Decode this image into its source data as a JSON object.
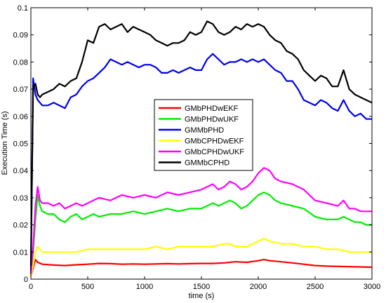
{
  "chart_data": {
    "type": "line",
    "title": "",
    "xlabel": "time (s)",
    "ylabel": "Execution Time (s)",
    "xlim": [
      0,
      3000
    ],
    "ylim": [
      0,
      0.1
    ],
    "xticks": [
      "0",
      "500",
      "1000",
      "1500",
      "2000",
      "2500",
      "3000"
    ],
    "yticks": [
      "0",
      "0.01",
      "0.02",
      "0.03",
      "0.04",
      "0.05",
      "0.06",
      "0.07",
      "0.08",
      "0.09",
      "0.1"
    ],
    "xtick_values": [
      0,
      500,
      1000,
      1500,
      2000,
      2500,
      3000
    ],
    "ytick_values": [
      0,
      0.01,
      0.02,
      0.03,
      0.04,
      0.05,
      0.06,
      0.07,
      0.08,
      0.09,
      0.1
    ],
    "grid": false,
    "legend_position": "center",
    "series": [
      {
        "name": "GMbPHDwEKF",
        "color": "#ff0000",
        "x": [
          0,
          20,
          40,
          60,
          100,
          200,
          300,
          400,
          500,
          600,
          700,
          800,
          900,
          1000,
          1100,
          1200,
          1300,
          1400,
          1500,
          1600,
          1700,
          1800,
          1900,
          2000,
          2050,
          2100,
          2200,
          2300,
          2400,
          2500,
          2600,
          2700,
          2800,
          2900,
          3000
        ],
        "y": [
          0.001,
          0.004,
          0.0072,
          0.0062,
          0.0055,
          0.0052,
          0.005,
          0.0053,
          0.0055,
          0.0058,
          0.0057,
          0.0055,
          0.0056,
          0.0055,
          0.0056,
          0.0057,
          0.0056,
          0.0057,
          0.0058,
          0.0058,
          0.006,
          0.0064,
          0.0062,
          0.0068,
          0.0072,
          0.0068,
          0.0064,
          0.006,
          0.0055,
          0.005,
          0.0048,
          0.0047,
          0.0046,
          0.0045,
          0.0044
        ]
      },
      {
        "name": "GMbPHDwUKF",
        "color": "#00ee00",
        "x": [
          0,
          20,
          40,
          60,
          80,
          100,
          150,
          200,
          250,
          300,
          350,
          400,
          450,
          500,
          550,
          600,
          700,
          800,
          900,
          1000,
          1100,
          1200,
          1300,
          1400,
          1500,
          1550,
          1600,
          1650,
          1700,
          1750,
          1800,
          1850,
          1900,
          1950,
          2000,
          2050,
          2100,
          2150,
          2200,
          2300,
          2400,
          2500,
          2600,
          2700,
          2750,
          2800,
          2850,
          2900,
          2950,
          3000
        ],
        "y": [
          0.002,
          0.01,
          0.022,
          0.031,
          0.027,
          0.025,
          0.024,
          0.024,
          0.022,
          0.021,
          0.023,
          0.024,
          0.022,
          0.023,
          0.024,
          0.023,
          0.024,
          0.024,
          0.025,
          0.024,
          0.025,
          0.026,
          0.025,
          0.026,
          0.026,
          0.027,
          0.028,
          0.027,
          0.028,
          0.029,
          0.028,
          0.026,
          0.027,
          0.029,
          0.031,
          0.032,
          0.031,
          0.029,
          0.028,
          0.027,
          0.026,
          0.023,
          0.022,
          0.022,
          0.023,
          0.022,
          0.021,
          0.021,
          0.02,
          0.02
        ]
      },
      {
        "name": "GMMbPHD",
        "color": "#0000ee",
        "x": [
          0,
          20,
          40,
          60,
          80,
          100,
          150,
          200,
          250,
          300,
          350,
          400,
          450,
          500,
          550,
          600,
          650,
          700,
          750,
          800,
          850,
          900,
          950,
          1000,
          1050,
          1100,
          1150,
          1200,
          1250,
          1300,
          1350,
          1400,
          1450,
          1500,
          1550,
          1600,
          1650,
          1700,
          1750,
          1800,
          1850,
          1900,
          1950,
          2000,
          2050,
          2100,
          2150,
          2200,
          2250,
          2300,
          2350,
          2400,
          2450,
          2500,
          2550,
          2600,
          2650,
          2700,
          2750,
          2800,
          2850,
          2900,
          2950,
          3000
        ],
        "y": [
          0.003,
          0.074,
          0.068,
          0.066,
          0.065,
          0.064,
          0.064,
          0.065,
          0.064,
          0.063,
          0.067,
          0.068,
          0.071,
          0.073,
          0.074,
          0.076,
          0.078,
          0.081,
          0.08,
          0.079,
          0.08,
          0.079,
          0.078,
          0.079,
          0.079,
          0.078,
          0.076,
          0.076,
          0.077,
          0.076,
          0.077,
          0.078,
          0.077,
          0.077,
          0.081,
          0.083,
          0.081,
          0.079,
          0.08,
          0.08,
          0.081,
          0.08,
          0.081,
          0.08,
          0.081,
          0.079,
          0.077,
          0.076,
          0.073,
          0.073,
          0.07,
          0.066,
          0.065,
          0.064,
          0.066,
          0.065,
          0.063,
          0.062,
          0.066,
          0.062,
          0.06,
          0.061,
          0.059,
          0.059
        ]
      },
      {
        "name": "GMbCPHDwEKF",
        "color": "#ffff00",
        "x": [
          0,
          20,
          40,
          60,
          100,
          200,
          300,
          400,
          500,
          600,
          700,
          800,
          900,
          1000,
          1100,
          1200,
          1300,
          1400,
          1500,
          1600,
          1700,
          1750,
          1800,
          1900,
          1950,
          2000,
          2050,
          2100,
          2200,
          2300,
          2400,
          2500,
          2600,
          2700,
          2800,
          2900,
          3000
        ],
        "y": [
          0.001,
          0.005,
          0.01,
          0.012,
          0.01,
          0.01,
          0.01,
          0.01,
          0.011,
          0.011,
          0.011,
          0.011,
          0.011,
          0.011,
          0.012,
          0.011,
          0.012,
          0.012,
          0.012,
          0.012,
          0.013,
          0.013,
          0.012,
          0.012,
          0.013,
          0.014,
          0.015,
          0.014,
          0.013,
          0.013,
          0.012,
          0.012,
          0.011,
          0.011,
          0.01,
          0.01,
          0.01
        ]
      },
      {
        "name": "GMbCPHDwUKF",
        "color": "#ff00ff",
        "x": [
          0,
          20,
          40,
          60,
          80,
          100,
          150,
          200,
          250,
          300,
          350,
          400,
          450,
          500,
          550,
          600,
          700,
          800,
          900,
          1000,
          1100,
          1200,
          1300,
          1400,
          1500,
          1550,
          1600,
          1650,
          1700,
          1750,
          1800,
          1850,
          1900,
          1950,
          2000,
          2050,
          2100,
          2150,
          2200,
          2300,
          2400,
          2500,
          2600,
          2700,
          2750,
          2800,
          2850,
          2900,
          2950,
          3000
        ],
        "y": [
          0.002,
          0.012,
          0.027,
          0.034,
          0.029,
          0.028,
          0.028,
          0.027,
          0.028,
          0.026,
          0.027,
          0.028,
          0.027,
          0.028,
          0.029,
          0.03,
          0.029,
          0.031,
          0.03,
          0.031,
          0.03,
          0.032,
          0.031,
          0.032,
          0.033,
          0.034,
          0.035,
          0.033,
          0.034,
          0.036,
          0.035,
          0.033,
          0.034,
          0.036,
          0.039,
          0.041,
          0.04,
          0.037,
          0.036,
          0.035,
          0.033,
          0.029,
          0.028,
          0.027,
          0.029,
          0.026,
          0.026,
          0.025,
          0.025,
          0.025
        ]
      },
      {
        "name": "GMMbCPHD",
        "color": "#000000",
        "x": [
          0,
          20,
          40,
          60,
          80,
          100,
          150,
          200,
          250,
          300,
          350,
          400,
          450,
          500,
          550,
          600,
          650,
          700,
          750,
          800,
          850,
          900,
          950,
          1000,
          1050,
          1100,
          1150,
          1200,
          1250,
          1300,
          1350,
          1400,
          1450,
          1500,
          1550,
          1600,
          1650,
          1700,
          1750,
          1800,
          1850,
          1900,
          1950,
          2000,
          2050,
          2100,
          2150,
          2200,
          2250,
          2300,
          2350,
          2400,
          2450,
          2500,
          2550,
          2600,
          2650,
          2700,
          2750,
          2800,
          2850,
          2900,
          2950,
          3000
        ],
        "y": [
          0.005,
          0.071,
          0.072,
          0.068,
          0.067,
          0.068,
          0.069,
          0.07,
          0.072,
          0.071,
          0.073,
          0.074,
          0.08,
          0.088,
          0.087,
          0.093,
          0.094,
          0.092,
          0.093,
          0.094,
          0.091,
          0.093,
          0.092,
          0.091,
          0.09,
          0.088,
          0.087,
          0.086,
          0.087,
          0.087,
          0.088,
          0.091,
          0.09,
          0.091,
          0.095,
          0.094,
          0.091,
          0.09,
          0.091,
          0.093,
          0.092,
          0.094,
          0.093,
          0.094,
          0.093,
          0.09,
          0.088,
          0.087,
          0.084,
          0.083,
          0.081,
          0.077,
          0.075,
          0.073,
          0.075,
          0.074,
          0.071,
          0.071,
          0.077,
          0.07,
          0.068,
          0.067,
          0.066,
          0.065
        ]
      }
    ]
  }
}
